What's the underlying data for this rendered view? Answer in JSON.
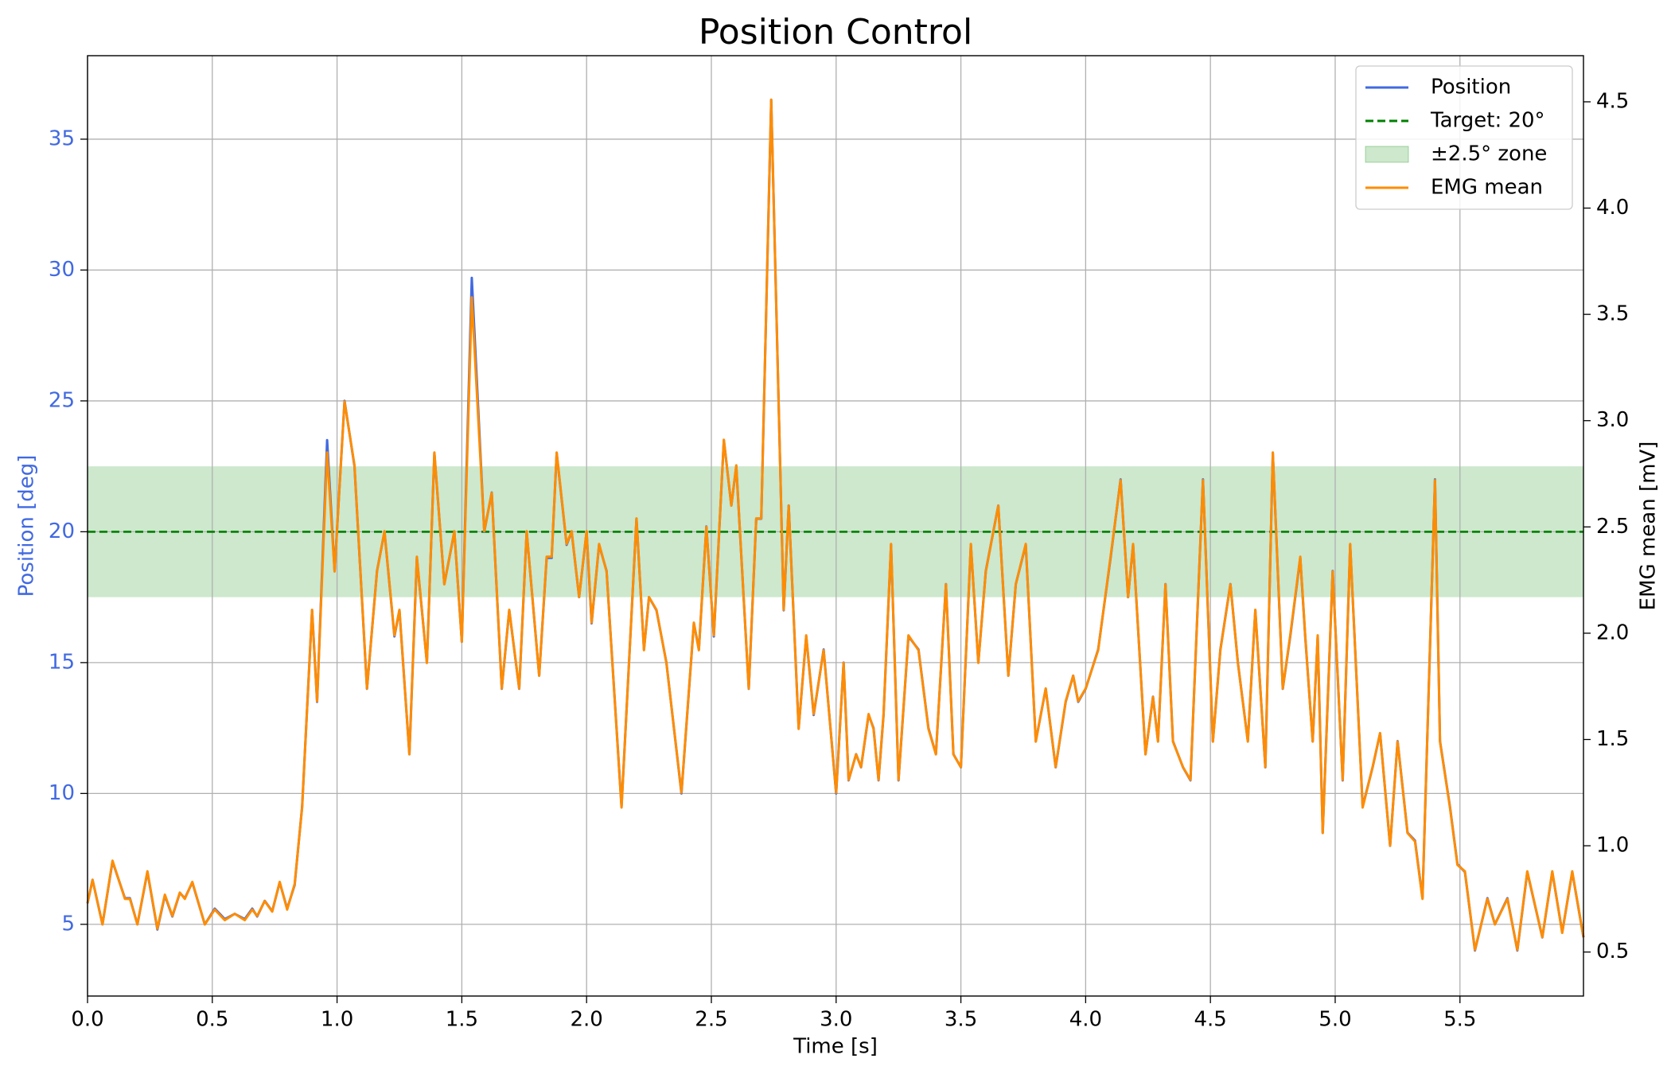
{
  "chart_data": {
    "type": "line",
    "title": "Position Control",
    "x_label": "Time [s]",
    "y_label": "Position [deg]",
    "y2_label": "EMG mean [mV]",
    "x": [
      0,
      0.02,
      0.06,
      0.1,
      0.15,
      0.17,
      0.2,
      0.24,
      0.28,
      0.31,
      0.34,
      0.37,
      0.39,
      0.42,
      0.47,
      0.51,
      0.55,
      0.59,
      0.63,
      0.66,
      0.68,
      0.71,
      0.74,
      0.77,
      0.8,
      0.83,
      0.86,
      0.9,
      0.92,
      0.96,
      0.99,
      1.03,
      1.07,
      1.12,
      1.16,
      1.19,
      1.23,
      1.25,
      1.29,
      1.32,
      1.36,
      1.39,
      1.43,
      1.47,
      1.5,
      1.54,
      1.59,
      1.62,
      1.66,
      1.69,
      1.73,
      1.76,
      1.81,
      1.84,
      1.86,
      1.88,
      1.92,
      1.94,
      1.97,
      2.0,
      2.02,
      2.05,
      2.08,
      2.14,
      2.2,
      2.23,
      2.25,
      2.28,
      2.32,
      2.38,
      2.43,
      2.45,
      2.48,
      2.51,
      2.55,
      2.58,
      2.6,
      2.65,
      2.68,
      2.7,
      2.74,
      2.79,
      2.81,
      2.85,
      2.88,
      2.91,
      2.95,
      3.0,
      3.03,
      3.05,
      3.08,
      3.1,
      3.13,
      3.15,
      3.17,
      3.19,
      3.22,
      3.25,
      3.29,
      3.33,
      3.37,
      3.4,
      3.44,
      3.47,
      3.5,
      3.54,
      3.57,
      3.6,
      3.65,
      3.69,
      3.72,
      3.76,
      3.8,
      3.84,
      3.88,
      3.92,
      3.95,
      3.97,
      4.0,
      4.05,
      4.1,
      4.14,
      4.17,
      4.19,
      4.24,
      4.27,
      4.29,
      4.32,
      4.35,
      4.39,
      4.42,
      4.47,
      4.51,
      4.54,
      4.58,
      4.61,
      4.65,
      4.68,
      4.72,
      4.75,
      4.79,
      4.82,
      4.86,
      4.88,
      4.91,
      4.93,
      4.95,
      4.99,
      5.03,
      5.06,
      5.11,
      5.15,
      5.18,
      5.22,
      5.25,
      5.29,
      5.32,
      5.35,
      5.4,
      5.42,
      5.46,
      5.49,
      5.52,
      5.56,
      5.61,
      5.64,
      5.69,
      5.73,
      5.77,
      5.83,
      5.87,
      5.91,
      5.95,
      5.995
    ],
    "series": [
      {
        "name": "Position",
        "color": "#4169e1",
        "values": [
          5.8,
          6.7,
          5.0,
          7.4,
          6.0,
          6.0,
          5.0,
          7.0,
          4.8,
          6.1,
          5.3,
          6.2,
          6.0,
          6.6,
          5.0,
          5.6,
          5.2,
          5.4,
          5.2,
          5.6,
          5.3,
          5.9,
          5.5,
          6.6,
          5.6,
          6.5,
          9.5,
          17,
          13.5,
          23.5,
          18.5,
          25,
          22.5,
          14,
          18.5,
          20,
          16,
          17,
          11.5,
          19,
          15,
          23,
          18,
          20,
          15.8,
          29.7,
          20,
          21.5,
          14,
          17,
          14,
          20,
          14.5,
          19,
          19,
          23,
          19.5,
          20,
          17.5,
          20,
          16.5,
          19.5,
          18.5,
          9.5,
          20.5,
          15.5,
          17.5,
          17,
          15,
          10,
          16.5,
          15.5,
          20.2,
          16,
          23.5,
          21,
          22.5,
          14,
          20.5,
          20.5,
          36.5,
          17,
          21,
          12.5,
          16,
          13,
          15.5,
          10,
          15,
          10.5,
          11.5,
          11,
          13,
          12.5,
          10.5,
          13,
          19.5,
          10.5,
          16,
          15.5,
          12.5,
          11.5,
          18,
          11.5,
          11,
          19.5,
          15,
          18.5,
          21,
          14.5,
          18,
          19.5,
          12,
          14,
          11,
          13.5,
          14.5,
          13.5,
          14,
          15.5,
          19,
          22,
          17.5,
          19.5,
          11.5,
          13.7,
          12,
          18,
          12,
          11,
          10.5,
          22,
          12,
          15.5,
          18,
          15,
          12,
          17,
          11,
          23,
          14,
          16,
          19,
          16,
          12,
          16,
          8.5,
          18.5,
          10.5,
          19.5,
          9.5,
          11,
          12.3,
          8,
          12,
          8.5,
          8.2,
          6,
          22,
          12,
          9.5,
          7.3,
          7,
          4,
          6,
          5,
          6,
          4,
          7,
          4.5,
          7,
          4.7,
          7,
          4.5
        ]
      },
      {
        "name": "EMG mean",
        "color": "#ff8c00",
        "axis": "y2",
        "values": [
          0.73,
          0.84,
          0.63,
          0.93,
          0.75,
          0.75,
          0.63,
          0.88,
          0.61,
          0.77,
          0.67,
          0.78,
          0.75,
          0.83,
          0.63,
          0.7,
          0.65,
          0.68,
          0.65,
          0.7,
          0.67,
          0.74,
          0.69,
          0.83,
          0.7,
          0.82,
          1.18,
          2.11,
          1.68,
          2.85,
          2.29,
          3.09,
          2.79,
          1.74,
          2.29,
          2.48,
          1.99,
          2.11,
          1.43,
          2.36,
          1.86,
          2.85,
          2.23,
          2.48,
          1.96,
          3.58,
          2.48,
          2.66,
          1.74,
          2.11,
          1.74,
          2.48,
          1.8,
          2.36,
          2.36,
          2.85,
          2.42,
          2.48,
          2.17,
          2.48,
          2.05,
          2.42,
          2.29,
          1.18,
          2.54,
          1.92,
          2.17,
          2.11,
          1.86,
          1.25,
          2.05,
          1.92,
          2.5,
          1.99,
          2.91,
          2.6,
          2.79,
          1.74,
          2.54,
          2.54,
          4.51,
          2.11,
          2.6,
          1.55,
          1.99,
          1.62,
          1.92,
          1.25,
          1.86,
          1.31,
          1.43,
          1.37,
          1.62,
          1.55,
          1.31,
          1.62,
          2.42,
          1.31,
          1.99,
          1.92,
          1.55,
          1.43,
          2.23,
          1.43,
          1.37,
          2.42,
          1.86,
          2.29,
          2.6,
          1.8,
          2.23,
          2.42,
          1.49,
          1.74,
          1.37,
          1.68,
          1.8,
          1.68,
          1.74,
          1.92,
          2.36,
          2.72,
          2.17,
          2.42,
          1.43,
          1.7,
          1.49,
          2.23,
          1.49,
          1.37,
          1.31,
          2.72,
          1.49,
          1.92,
          2.23,
          1.86,
          1.49,
          2.11,
          1.37,
          2.85,
          1.74,
          1.99,
          2.36,
          1.99,
          1.49,
          1.99,
          1.06,
          2.29,
          1.31,
          2.42,
          1.18,
          1.37,
          1.53,
          1.0,
          1.49,
          1.06,
          1.02,
          0.75,
          2.72,
          1.49,
          1.18,
          0.91,
          0.88,
          0.51,
          0.75,
          0.63,
          0.75,
          0.51,
          0.88,
          0.57,
          0.88,
          0.59,
          0.88,
          0.57
        ]
      }
    ],
    "target": {
      "label": "Target: 20°",
      "value": 20,
      "color": "#008000"
    },
    "zone": {
      "label": "±2.5° zone",
      "lower": 17.5,
      "upper": 22.5,
      "color": "#2ca02c"
    },
    "xlim": [
      0,
      5.995
    ],
    "ylim": [
      2.26,
      38.19
    ],
    "y2lim": [
      0.293,
      4.717
    ],
    "xticks": [
      {
        "value": 0,
        "label": "0.0"
      },
      0.5,
      {
        "value": 1,
        "label": "1.0"
      },
      1.5,
      {
        "value": 2,
        "label": "2.0"
      },
      2.5,
      {
        "value": 3,
        "label": "3.0"
      },
      3.5,
      {
        "value": 4,
        "label": "4.0"
      },
      4.5,
      {
        "value": 5,
        "label": "5.0"
      },
      5.5
    ],
    "yticks": [
      5,
      10,
      15,
      20,
      25,
      30,
      35
    ],
    "y2ticks": [
      0.5,
      {
        "value": 1,
        "label": "1.0"
      },
      1.5,
      {
        "value": 2,
        "label": "2.0"
      },
      2.5,
      {
        "value": 3,
        "label": "3.0"
      },
      3.5,
      {
        "value": 4,
        "label": "4.0"
      },
      4.5
    ],
    "grid": true,
    "legend": "upper right"
  }
}
